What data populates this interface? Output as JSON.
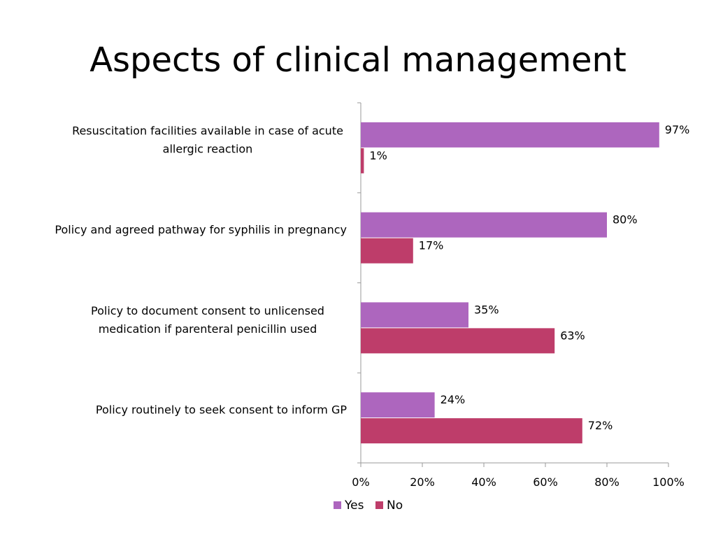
{
  "slide": {
    "title": "Aspects of clinical management"
  },
  "chart_data": {
    "type": "bar",
    "orientation": "horizontal",
    "categories": [
      [
        "Resuscitation facilities available in case of acute",
        "allergic reaction"
      ],
      [
        "Policy and agreed pathway for syphilis in pregnancy"
      ],
      [
        "Policy to document consent to unlicensed",
        "medication if parenteral penicillin used"
      ],
      [
        "Policy routinely to seek consent to inform GP"
      ]
    ],
    "series": [
      {
        "name": "Yes",
        "color": "#AD66BE",
        "values": [
          97,
          80,
          35,
          24
        ],
        "labels": [
          "97%",
          "80%",
          "35%",
          "24%"
        ]
      },
      {
        "name": "No",
        "color": "#BE3D6A",
        "values": [
          1,
          17,
          63,
          72
        ],
        "labels": [
          "1%",
          "17%",
          "63%",
          "72%"
        ]
      }
    ],
    "xlim": [
      0,
      100
    ],
    "xticks": [
      0,
      20,
      40,
      60,
      80,
      100
    ],
    "xtick_labels": [
      "0%",
      "20%",
      "40%",
      "60%",
      "80%",
      "100%"
    ],
    "grid": false,
    "legend_position": "bottom",
    "axis_color": "#9A9A9A",
    "label_color": "#000000"
  }
}
